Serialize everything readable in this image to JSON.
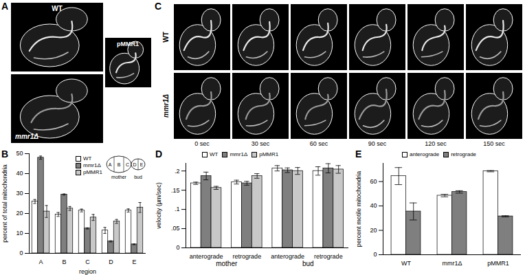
{
  "panel_labels": [
    "A",
    "B",
    "C",
    "D",
    "E"
  ],
  "micrographs": {
    "A": {
      "labels": [
        "WT",
        "mmr1Δ",
        "pMMR1"
      ]
    },
    "C": {
      "rows": [
        "WT",
        "mmr1Δ"
      ],
      "times": [
        "0 sec",
        "30 sec",
        "60 sec",
        "90 sec",
        "120 sec",
        "150 sec"
      ]
    }
  },
  "chart_data": [
    {
      "type": "bar",
      "categories": [
        "A",
        "B",
        "C",
        "D",
        "E"
      ],
      "x_label": "region",
      "y_label": "percent of total mitochondria",
      "ylim": [
        0,
        50
      ],
      "yticks": [
        0,
        10,
        20,
        30,
        40,
        50
      ],
      "legend": "top",
      "annotations": [
        "mother",
        "bud"
      ],
      "series": [
        {
          "name": "WT",
          "color": "#ffffff",
          "values": [
            26,
            19.5,
            21.5,
            11.5,
            21.5
          ],
          "errors": [
            1,
            1,
            0.7,
            1.5,
            0.8
          ]
        },
        {
          "name": "mmr1Δ",
          "color": "#7f7f7f",
          "values": [
            48,
            29.5,
            12.5,
            6,
            4.5
          ],
          "errors": [
            0.8,
            0.3,
            0.3,
            0.3,
            0.2
          ]
        },
        {
          "name": "pMMR1",
          "color": "#c8c8c8",
          "values": [
            21,
            22.5,
            18,
            16,
            23
          ],
          "errors": [
            3,
            1,
            1.5,
            1,
            2.5
          ]
        }
      ]
    },
    {
      "type": "bar",
      "categories": [
        "anterograde",
        "retrograde",
        "anterograde",
        "retrograde"
      ],
      "group_labels": [
        "mother",
        "bud"
      ],
      "y_label": "velocity (µm/sec)",
      "ylim": [
        0,
        0.22
      ],
      "yticks": [
        0,
        {
          "value": 0.05,
          "label": ".05"
        },
        {
          "value": 0.1,
          "label": ".1"
        },
        {
          "value": 0.15,
          "label": ".15"
        },
        {
          "value": 0.2,
          "label": ".2"
        }
      ],
      "legend": "top",
      "series": [
        {
          "name": "WT",
          "color": "#ffffff",
          "values": [
            0.168,
            0.171,
            0.207,
            0.2
          ],
          "errors": [
            0.003,
            0.005,
            0.007,
            0.011
          ]
        },
        {
          "name": "mmr1Δ",
          "color": "#7f7f7f",
          "values": [
            0.187,
            0.168,
            0.202,
            0.207
          ],
          "errors": [
            0.01,
            0.005,
            0.006,
            0.012
          ]
        },
        {
          "name": "pMMR1",
          "color": "#c8c8c8",
          "values": [
            0.156,
            0.187,
            0.2,
            0.204
          ],
          "errors": [
            0.004,
            0.006,
            0.009,
            0.01
          ]
        }
      ]
    },
    {
      "type": "bar",
      "categories": [
        "WT",
        "mmr1Δ",
        "pMMR1"
      ],
      "y_label": "percent motile mitochondria",
      "ylim": [
        0,
        75
      ],
      "yticks": [
        0,
        20,
        40,
        60
      ],
      "legend": "top",
      "series": [
        {
          "name": "anterograde",
          "color": "#ffffff",
          "values": [
            64.5,
            48.5,
            68.5
          ],
          "errors": [
            7,
            1,
            0.5
          ]
        },
        {
          "name": "retrograde",
          "color": "#7f7f7f",
          "values": [
            35.5,
            51.5,
            31.5
          ],
          "errors": [
            7,
            1,
            0.5
          ]
        }
      ]
    }
  ]
}
